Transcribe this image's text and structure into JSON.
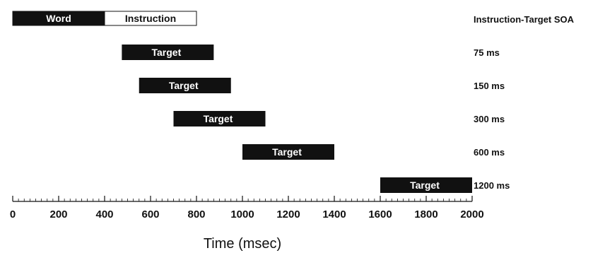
{
  "header": {
    "soa_title": "Instruction-Target SOA"
  },
  "trial": {
    "word": {
      "label": "Word",
      "start": 0,
      "end": 400
    },
    "instruction": {
      "label": "Instruction",
      "start": 400,
      "end": 800
    }
  },
  "targets": [
    {
      "label": "Target",
      "start": 475,
      "end": 875,
      "soa": "75 ms"
    },
    {
      "label": "Target",
      "start": 550,
      "end": 950,
      "soa": "150 ms"
    },
    {
      "label": "Target",
      "start": 700,
      "end": 1100,
      "soa": "300 ms"
    },
    {
      "label": "Target",
      "start": 1000,
      "end": 1400,
      "soa": "600 ms"
    },
    {
      "label": "Target",
      "start": 1600,
      "end": 2000,
      "soa": "1200 ms"
    }
  ],
  "axis": {
    "title": "Time (msec)",
    "min": 0,
    "max": 2000,
    "major_step": 200,
    "minor_step": 25,
    "tick_labels": [
      "0",
      "200",
      "400",
      "600",
      "800",
      "1000",
      "1200",
      "1400",
      "1600",
      "1800",
      "2000"
    ]
  },
  "colors": {
    "bar_fill": "#111111",
    "bar_text": "#ffffff",
    "instruction_fill": "#ffffff",
    "instruction_text": "#111111",
    "axis": "#111111"
  }
}
